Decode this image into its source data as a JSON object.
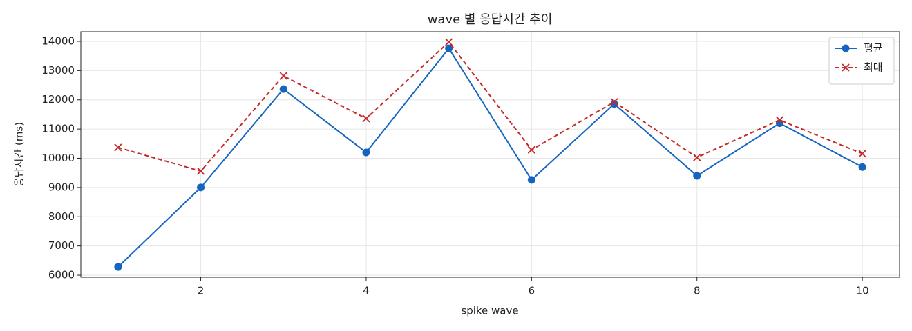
{
  "chart_data": {
    "type": "line",
    "title": "wave 별 응답시간 추이",
    "x_label": "spike wave",
    "y_label": "응답시간 (ms)",
    "x": [
      1,
      2,
      3,
      4,
      5,
      6,
      7,
      8,
      9,
      10
    ],
    "series": [
      {
        "name": "평균",
        "color": "#1565c0",
        "linestyle": "solid",
        "marker": "circle",
        "values": [
          6280,
          9000,
          12370,
          10200,
          13760,
          9260,
          11860,
          9400,
          11200,
          9700
        ]
      },
      {
        "name": "최대",
        "color": "#c62828",
        "linestyle": "dashed",
        "marker": "x",
        "values": [
          10370,
          9560,
          12820,
          11360,
          13980,
          10290,
          11930,
          10030,
          11310,
          10160
        ]
      }
    ],
    "xlim": [
      0.55,
      10.45
    ],
    "xticks": [
      2,
      4,
      6,
      8,
      10
    ],
    "ylim": [
      5930,
      14330
    ],
    "yticks": [
      6000,
      7000,
      8000,
      9000,
      10000,
      11000,
      12000,
      13000,
      14000
    ],
    "grid": true,
    "legend": "upper right"
  }
}
